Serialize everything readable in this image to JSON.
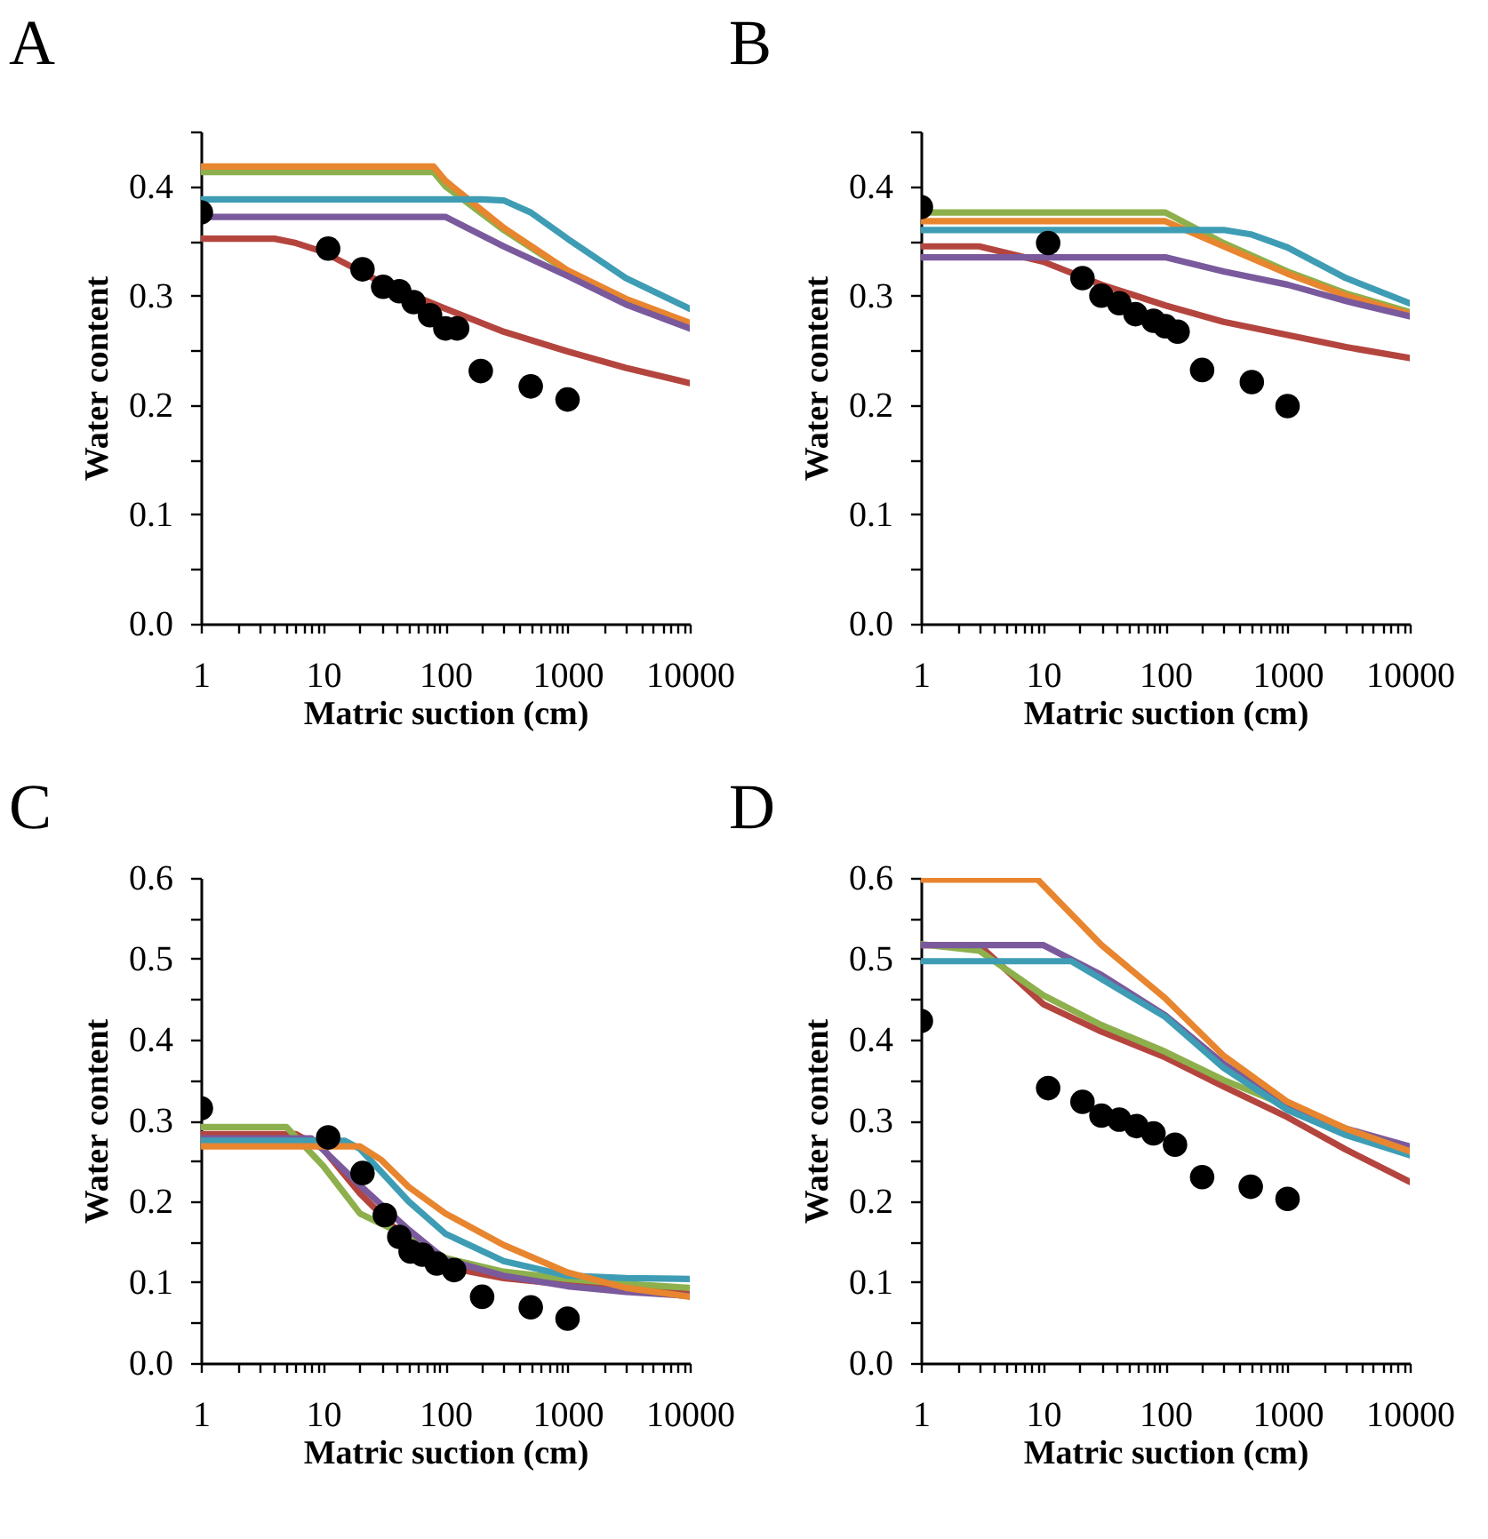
{
  "chart_data": [
    {
      "type": "line",
      "title": "A",
      "xlabel": "Matric suction (cm)",
      "ylabel": "Water content",
      "log": "x",
      "marker": "none",
      "line_style": "solid",
      "xlim": [
        1,
        10000
      ],
      "ylim": [
        0,
        0.45
      ],
      "xticks": [
        1,
        {
          "value": 2,
          "label": null
        },
        {
          "value": 3,
          "label": null
        },
        {
          "value": 4,
          "label": null
        },
        {
          "value": 5,
          "label": null
        },
        {
          "value": 6,
          "label": null
        },
        {
          "value": 7,
          "label": null
        },
        {
          "value": 8,
          "label": null
        },
        {
          "value": 9,
          "label": null
        },
        10,
        {
          "value": 20,
          "label": null
        },
        {
          "value": 30,
          "label": null
        },
        {
          "value": 40,
          "label": null
        },
        {
          "value": 50,
          "label": null
        },
        {
          "value": 60,
          "label": null
        },
        {
          "value": 70,
          "label": null
        },
        {
          "value": 80,
          "label": null
        },
        {
          "value": 90,
          "label": null
        },
        100,
        {
          "value": 200,
          "label": null
        },
        {
          "value": 300,
          "label": null
        },
        {
          "value": 400,
          "label": null
        },
        {
          "value": 500,
          "label": null
        },
        {
          "value": 600,
          "label": null
        },
        {
          "value": 700,
          "label": null
        },
        {
          "value": 800,
          "label": null
        },
        {
          "value": 900,
          "label": null
        },
        1000,
        {
          "value": 2000,
          "label": null
        },
        {
          "value": 3000,
          "label": null
        },
        {
          "value": 4000,
          "label": null
        },
        {
          "value": 5000,
          "label": null
        },
        {
          "value": 6000,
          "label": null
        },
        {
          "value": 7000,
          "label": null
        },
        {
          "value": 8000,
          "label": null
        },
        {
          "value": 9000,
          "label": null
        },
        10000
      ],
      "yticks": [
        {
          "value": 0,
          "label": "0.0"
        },
        {
          "value": 0.05,
          "label": null
        },
        {
          "value": 0.1,
          "label": "0.1"
        },
        {
          "value": 0.15,
          "label": null
        },
        {
          "value": 0.2,
          "label": "0.2"
        },
        {
          "value": 0.25,
          "label": null
        },
        {
          "value": 0.3,
          "label": "0.3"
        },
        {
          "value": 0.35,
          "label": null
        },
        {
          "value": 0.4,
          "label": "0.4"
        },
        {
          "value": 0.45,
          "label": null
        }
      ],
      "series": [
        {
          "type": "line",
          "color": "#b4453e",
          "x": [
            1,
            4,
            6,
            10,
            30,
            100,
            300,
            1000,
            3000,
            10000
          ],
          "values": [
            0.352,
            0.352,
            0.348,
            0.34,
            0.312,
            0.288,
            0.267,
            0.249,
            0.234,
            0.22
          ]
        },
        {
          "type": "line",
          "color": "#8db04c",
          "x": [
            1,
            80,
            100,
            300,
            1000,
            3000,
            10000
          ],
          "values": [
            0.413,
            0.413,
            0.4,
            0.36,
            0.322,
            0.295,
            0.273
          ]
        },
        {
          "type": "line",
          "color": "#e8852f",
          "x": [
            1,
            80,
            100,
            300,
            1000,
            3000,
            10000
          ],
          "values": [
            0.418,
            0.418,
            0.405,
            0.362,
            0.323,
            0.297,
            0.275
          ]
        },
        {
          "type": "line",
          "color": "#3e9db4",
          "x": [
            1,
            200,
            300,
            500,
            1000,
            3000,
            10000
          ],
          "values": [
            0.388,
            0.388,
            0.387,
            0.376,
            0.352,
            0.316,
            0.288
          ]
        },
        {
          "type": "line",
          "color": "#7a5a9c",
          "x": [
            1,
            100,
            300,
            1000,
            3000,
            10000
          ],
          "values": [
            0.372,
            0.372,
            0.345,
            0.318,
            0.292,
            0.27
          ]
        },
        {
          "type": "scatter",
          "color": "#000000",
          "marker": "circle",
          "x": [
            1,
            11,
            21,
            31,
            42,
            55,
            75,
            100,
            125,
            195,
            500,
            1000
          ],
          "values": [
            0.376,
            0.343,
            0.324,
            0.308,
            0.304,
            0.294,
            0.282,
            0.27,
            0.27,
            0.231,
            0.217,
            0.205
          ]
        }
      ]
    },
    {
      "type": "line",
      "title": "B",
      "xlabel": "Matric suction (cm)",
      "ylabel": "Water content",
      "log": "x",
      "marker": "none",
      "line_style": "solid",
      "xlim": [
        1,
        10000
      ],
      "ylim": [
        0,
        0.45
      ],
      "xticks": [
        1,
        {
          "value": 2,
          "label": null
        },
        {
          "value": 3,
          "label": null
        },
        {
          "value": 4,
          "label": null
        },
        {
          "value": 5,
          "label": null
        },
        {
          "value": 6,
          "label": null
        },
        {
          "value": 7,
          "label": null
        },
        {
          "value": 8,
          "label": null
        },
        {
          "value": 9,
          "label": null
        },
        10,
        {
          "value": 20,
          "label": null
        },
        {
          "value": 30,
          "label": null
        },
        {
          "value": 40,
          "label": null
        },
        {
          "value": 50,
          "label": null
        },
        {
          "value": 60,
          "label": null
        },
        {
          "value": 70,
          "label": null
        },
        {
          "value": 80,
          "label": null
        },
        {
          "value": 90,
          "label": null
        },
        100,
        {
          "value": 200,
          "label": null
        },
        {
          "value": 300,
          "label": null
        },
        {
          "value": 400,
          "label": null
        },
        {
          "value": 500,
          "label": null
        },
        {
          "value": 600,
          "label": null
        },
        {
          "value": 700,
          "label": null
        },
        {
          "value": 800,
          "label": null
        },
        {
          "value": 900,
          "label": null
        },
        1000,
        {
          "value": 2000,
          "label": null
        },
        {
          "value": 3000,
          "label": null
        },
        {
          "value": 4000,
          "label": null
        },
        {
          "value": 5000,
          "label": null
        },
        {
          "value": 6000,
          "label": null
        },
        {
          "value": 7000,
          "label": null
        },
        {
          "value": 8000,
          "label": null
        },
        {
          "value": 9000,
          "label": null
        },
        10000
      ],
      "yticks": [
        {
          "value": 0,
          "label": "0.0"
        },
        {
          "value": 0.05,
          "label": null
        },
        {
          "value": 0.1,
          "label": "0.1"
        },
        {
          "value": 0.15,
          "label": null
        },
        {
          "value": 0.2,
          "label": "0.2"
        },
        {
          "value": 0.25,
          "label": null
        },
        {
          "value": 0.3,
          "label": "0.3"
        },
        {
          "value": 0.35,
          "label": null
        },
        {
          "value": 0.4,
          "label": "0.4"
        },
        {
          "value": 0.45,
          "label": null
        }
      ],
      "series": [
        {
          "type": "line",
          "color": "#b4453e",
          "x": [
            1,
            3,
            10,
            30,
            100,
            300,
            1000,
            3000,
            10000
          ],
          "values": [
            0.345,
            0.345,
            0.331,
            0.31,
            0.291,
            0.276,
            0.264,
            0.253,
            0.243
          ]
        },
        {
          "type": "line",
          "color": "#8db04c",
          "x": [
            1,
            100,
            300,
            1000,
            3000,
            10000
          ],
          "values": [
            0.376,
            0.376,
            0.348,
            0.322,
            0.302,
            0.285
          ]
        },
        {
          "type": "line",
          "color": "#e8852f",
          "x": [
            1,
            100,
            300,
            1000,
            3000,
            10000
          ],
          "values": [
            0.368,
            0.368,
            0.345,
            0.32,
            0.3,
            0.283
          ]
        },
        {
          "type": "line",
          "color": "#3e9db4",
          "x": [
            1,
            300,
            500,
            1000,
            3000,
            10000
          ],
          "values": [
            0.36,
            0.36,
            0.356,
            0.344,
            0.316,
            0.293
          ]
        },
        {
          "type": "line",
          "color": "#7a5a9c",
          "x": [
            1,
            100,
            300,
            1000,
            3000,
            10000
          ],
          "values": [
            0.335,
            0.335,
            0.322,
            0.31,
            0.295,
            0.281
          ]
        },
        {
          "type": "scatter",
          "color": "#000000",
          "marker": "circle",
          "x": [
            1,
            11,
            21,
            30,
            42,
            57,
            80,
            100,
            126,
            200,
            510,
            1000
          ],
          "values": [
            0.381,
            0.348,
            0.316,
            0.3,
            0.293,
            0.283,
            0.277,
            0.272,
            0.267,
            0.232,
            0.221,
            0.199
          ]
        }
      ]
    },
    {
      "type": "line",
      "title": "C",
      "xlabel": "Matric suction (cm)",
      "ylabel": "Water content",
      "log": "x",
      "marker": "none",
      "line_style": "solid",
      "xlim": [
        1,
        10000
      ],
      "ylim": [
        0,
        0.6
      ],
      "xticks": [
        1,
        {
          "value": 2,
          "label": null
        },
        {
          "value": 3,
          "label": null
        },
        {
          "value": 4,
          "label": null
        },
        {
          "value": 5,
          "label": null
        },
        {
          "value": 6,
          "label": null
        },
        {
          "value": 7,
          "label": null
        },
        {
          "value": 8,
          "label": null
        },
        {
          "value": 9,
          "label": null
        },
        10,
        {
          "value": 20,
          "label": null
        },
        {
          "value": 30,
          "label": null
        },
        {
          "value": 40,
          "label": null
        },
        {
          "value": 50,
          "label": null
        },
        {
          "value": 60,
          "label": null
        },
        {
          "value": 70,
          "label": null
        },
        {
          "value": 80,
          "label": null
        },
        {
          "value": 90,
          "label": null
        },
        100,
        {
          "value": 200,
          "label": null
        },
        {
          "value": 300,
          "label": null
        },
        {
          "value": 400,
          "label": null
        },
        {
          "value": 500,
          "label": null
        },
        {
          "value": 600,
          "label": null
        },
        {
          "value": 700,
          "label": null
        },
        {
          "value": 800,
          "label": null
        },
        {
          "value": 900,
          "label": null
        },
        1000,
        {
          "value": 2000,
          "label": null
        },
        {
          "value": 3000,
          "label": null
        },
        {
          "value": 4000,
          "label": null
        },
        {
          "value": 5000,
          "label": null
        },
        {
          "value": 6000,
          "label": null
        },
        {
          "value": 7000,
          "label": null
        },
        {
          "value": 8000,
          "label": null
        },
        {
          "value": 9000,
          "label": null
        },
        10000
      ],
      "yticks": [
        {
          "value": 0,
          "label": "0.0"
        },
        {
          "value": 0.05,
          "label": null
        },
        {
          "value": 0.1,
          "label": "0.1"
        },
        {
          "value": 0.15,
          "label": null
        },
        {
          "value": 0.2,
          "label": "0.2"
        },
        {
          "value": 0.25,
          "label": null
        },
        {
          "value": 0.3,
          "label": "0.3"
        },
        {
          "value": 0.35,
          "label": null
        },
        {
          "value": 0.4,
          "label": "0.4"
        },
        {
          "value": 0.45,
          "label": null
        },
        {
          "value": 0.5,
          "label": "0.5"
        },
        {
          "value": 0.55,
          "label": null
        },
        {
          "value": 0.6,
          "label": "0.6"
        }
      ],
      "series": [
        {
          "type": "line",
          "color": "#b4453e",
          "x": [
            1,
            6,
            10,
            20,
            50,
            100,
            300,
            1000,
            3000,
            10000
          ],
          "values": [
            0.283,
            0.283,
            0.265,
            0.21,
            0.15,
            0.119,
            0.105,
            0.097,
            0.091,
            0.086
          ]
        },
        {
          "type": "line",
          "color": "#8db04c",
          "x": [
            1,
            5,
            10,
            20,
            50,
            100,
            300,
            1000,
            3000,
            10000
          ],
          "values": [
            0.292,
            0.292,
            0.244,
            0.185,
            0.156,
            0.13,
            0.113,
            0.104,
            0.098,
            0.093
          ]
        },
        {
          "type": "line",
          "color": "#7a5a9c",
          "x": [
            1,
            8,
            20,
            50,
            100,
            300,
            1000,
            3000,
            10000
          ],
          "values": [
            0.278,
            0.278,
            0.22,
            0.165,
            0.128,
            0.108,
            0.095,
            0.088,
            0.083
          ]
        },
        {
          "type": "line",
          "color": "#3e9db4",
          "x": [
            1,
            15,
            20,
            50,
            100,
            300,
            1000,
            3000,
            10000
          ],
          "values": [
            0.275,
            0.275,
            0.265,
            0.2,
            0.16,
            0.126,
            0.108,
            0.105,
            0.104
          ]
        },
        {
          "type": "line",
          "color": "#e8852f",
          "x": [
            1,
            20,
            30,
            50,
            100,
            300,
            1000,
            3000,
            10000
          ],
          "values": [
            0.268,
            0.268,
            0.251,
            0.218,
            0.185,
            0.146,
            0.112,
            0.093,
            0.082
          ]
        },
        {
          "type": "scatter",
          "color": "#000000",
          "marker": "circle",
          "x": [
            1,
            11,
            21,
            32,
            42,
            52,
            65,
            85,
            118,
            200,
            500,
            1000
          ],
          "values": [
            0.315,
            0.279,
            0.235,
            0.183,
            0.156,
            0.138,
            0.134,
            0.123,
            0.115,
            0.082,
            0.069,
            0.055
          ]
        }
      ]
    },
    {
      "type": "line",
      "title": "D",
      "xlabel": "Matric suction (cm)",
      "ylabel": "Water content",
      "log": "x",
      "marker": "none",
      "line_style": "solid",
      "xlim": [
        1,
        10000
      ],
      "ylim": [
        0,
        0.6
      ],
      "xticks": [
        1,
        {
          "value": 2,
          "label": null
        },
        {
          "value": 3,
          "label": null
        },
        {
          "value": 4,
          "label": null
        },
        {
          "value": 5,
          "label": null
        },
        {
          "value": 6,
          "label": null
        },
        {
          "value": 7,
          "label": null
        },
        {
          "value": 8,
          "label": null
        },
        {
          "value": 9,
          "label": null
        },
        10,
        {
          "value": 20,
          "label": null
        },
        {
          "value": 30,
          "label": null
        },
        {
          "value": 40,
          "label": null
        },
        {
          "value": 50,
          "label": null
        },
        {
          "value": 60,
          "label": null
        },
        {
          "value": 70,
          "label": null
        },
        {
          "value": 80,
          "label": null
        },
        {
          "value": 90,
          "label": null
        },
        100,
        {
          "value": 200,
          "label": null
        },
        {
          "value": 300,
          "label": null
        },
        {
          "value": 400,
          "label": null
        },
        {
          "value": 500,
          "label": null
        },
        {
          "value": 600,
          "label": null
        },
        {
          "value": 700,
          "label": null
        },
        {
          "value": 800,
          "label": null
        },
        {
          "value": 900,
          "label": null
        },
        1000,
        {
          "value": 2000,
          "label": null
        },
        {
          "value": 3000,
          "label": null
        },
        {
          "value": 4000,
          "label": null
        },
        {
          "value": 5000,
          "label": null
        },
        {
          "value": 6000,
          "label": null
        },
        {
          "value": 7000,
          "label": null
        },
        {
          "value": 8000,
          "label": null
        },
        {
          "value": 9000,
          "label": null
        },
        10000
      ],
      "yticks": [
        {
          "value": 0,
          "label": "0.0"
        },
        {
          "value": 0.05,
          "label": null
        },
        {
          "value": 0.1,
          "label": "0.1"
        },
        {
          "value": 0.15,
          "label": null
        },
        {
          "value": 0.2,
          "label": "0.2"
        },
        {
          "value": 0.25,
          "label": null
        },
        {
          "value": 0.3,
          "label": "0.3"
        },
        {
          "value": 0.35,
          "label": null
        },
        {
          "value": 0.4,
          "label": "0.4"
        },
        {
          "value": 0.45,
          "label": null
        },
        {
          "value": 0.5,
          "label": "0.5"
        },
        {
          "value": 0.55,
          "label": null
        },
        {
          "value": 0.6,
          "label": "0.6"
        }
      ],
      "series": [
        {
          "type": "line",
          "color": "#b4453e",
          "x": [
            1,
            3,
            10,
            30,
            100,
            300,
            1000,
            3000,
            10000
          ],
          "values": [
            0.517,
            0.517,
            0.444,
            0.41,
            0.378,
            0.342,
            0.304,
            0.264,
            0.224
          ]
        },
        {
          "type": "line",
          "color": "#8db04c",
          "x": [
            1,
            3,
            10,
            30,
            100,
            300,
            1000,
            3000,
            10000
          ],
          "values": [
            0.518,
            0.51,
            0.455,
            0.418,
            0.385,
            0.35,
            0.318,
            0.287,
            0.262
          ]
        },
        {
          "type": "line",
          "color": "#7a5a9c",
          "x": [
            1,
            10,
            30,
            100,
            300,
            1000,
            3000,
            10000
          ],
          "values": [
            0.517,
            0.517,
            0.48,
            0.43,
            0.37,
            0.318,
            0.29,
            0.268
          ]
        },
        {
          "type": "line",
          "color": "#3e9db4",
          "x": [
            1,
            17,
            30,
            100,
            300,
            1000,
            3000,
            10000
          ],
          "values": [
            0.497,
            0.497,
            0.475,
            0.428,
            0.365,
            0.313,
            0.282,
            0.257
          ]
        },
        {
          "type": "line",
          "color": "#e8852f",
          "x": [
            1,
            9,
            30,
            100,
            300,
            1000,
            3000,
            10000
          ],
          "values": [
            0.598,
            0.598,
            0.517,
            0.451,
            0.38,
            0.323,
            0.29,
            0.262
          ]
        },
        {
          "type": "scatter",
          "color": "#000000",
          "marker": "circle",
          "x": [
            1,
            11,
            21,
            30,
            42,
            58,
            80,
            120,
            200,
            500,
            1000
          ],
          "values": [
            0.423,
            0.34,
            0.323,
            0.306,
            0.301,
            0.293,
            0.284,
            0.27,
            0.23,
            0.218,
            0.203
          ]
        }
      ]
    }
  ]
}
